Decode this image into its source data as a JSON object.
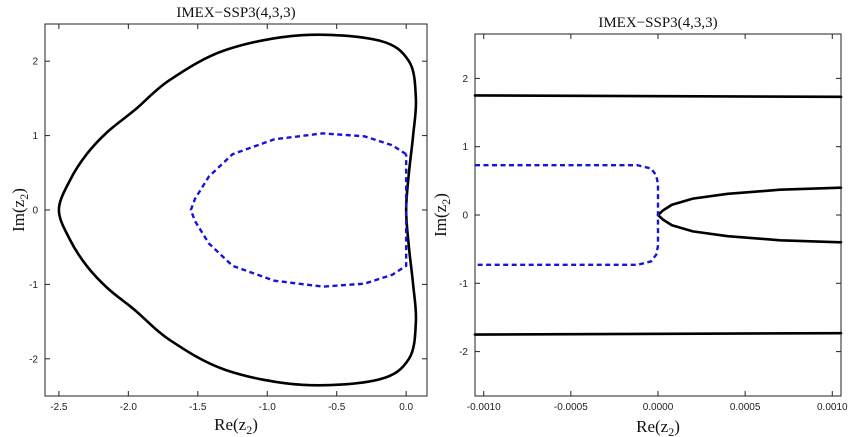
{
  "chart_data": [
    {
      "type": "line",
      "title": "IMEX−SSP3(4,3,3)",
      "xlabel_base": "Re(z",
      "xlabel_sub": "2",
      "xlabel_end": ")",
      "ylabel_base": "Im(z",
      "ylabel_sub": "2",
      "ylabel_end": ")",
      "xlim": [
        -2.6,
        0.15
      ],
      "ylim": [
        -2.5,
        2.5
      ],
      "xticks": [
        -2.5,
        -2.0,
        -1.5,
        -1.0,
        -0.5,
        0.0
      ],
      "xtick_labels": [
        "-2.5",
        "-2.0",
        "-1.5",
        "-1.0",
        "-0.5",
        "0.0"
      ],
      "yticks": [
        -2,
        -1,
        0,
        1,
        2
      ],
      "ytick_labels": [
        "-2",
        "-1",
        "0",
        "1",
        "2"
      ],
      "grid": false,
      "series": [
        {
          "style": "solid",
          "color": "#000000",
          "closed": true,
          "points": [
            [
              -0.75,
              2.35
            ],
            [
              -0.2,
              2.28
            ],
            [
              0.02,
              2.0
            ],
            [
              0.07,
              1.5
            ],
            [
              0.05,
              1.0
            ],
            [
              0.02,
              0.5
            ],
            [
              0.0,
              0.0
            ],
            [
              0.02,
              -0.5
            ],
            [
              0.05,
              -1.0
            ],
            [
              0.07,
              -1.5
            ],
            [
              0.02,
              -2.0
            ],
            [
              -0.2,
              -2.28
            ],
            [
              -0.75,
              -2.35
            ],
            [
              -1.3,
              -2.15
            ],
            [
              -1.7,
              -1.75
            ],
            [
              -1.95,
              -1.35
            ],
            [
              -2.15,
              -1.05
            ],
            [
              -2.3,
              -0.75
            ],
            [
              -2.42,
              -0.4
            ],
            [
              -2.5,
              0.0
            ],
            [
              -2.42,
              0.4
            ],
            [
              -2.3,
              0.75
            ],
            [
              -2.15,
              1.05
            ],
            [
              -1.95,
              1.35
            ],
            [
              -1.7,
              1.75
            ],
            [
              -1.3,
              2.15
            ]
          ]
        },
        {
          "style": "dashed",
          "color": "#1515d9",
          "closed": false,
          "points": [
            [
              0.0,
              0.75
            ],
            [
              -0.1,
              0.87
            ],
            [
              -0.3,
              0.99
            ],
            [
              -0.6,
              1.03
            ],
            [
              -0.95,
              0.95
            ],
            [
              -1.25,
              0.75
            ],
            [
              -1.42,
              0.45
            ],
            [
              -1.52,
              0.15
            ],
            [
              -1.55,
              0.0
            ],
            [
              -1.52,
              -0.15
            ],
            [
              -1.42,
              -0.45
            ],
            [
              -1.25,
              -0.75
            ],
            [
              -0.95,
              -0.95
            ],
            [
              -0.6,
              -1.03
            ],
            [
              -0.3,
              -0.99
            ],
            [
              -0.1,
              -0.87
            ],
            [
              0.0,
              -0.75
            ],
            [
              0.0,
              0.75
            ]
          ]
        }
      ]
    },
    {
      "type": "line",
      "title": "IMEX−SSP3(4,3,3)",
      "xlabel_base": "Re(z",
      "xlabel_sub": "2",
      "xlabel_end": ")",
      "ylabel_base": "Im(z",
      "ylabel_sub": "2",
      "ylabel_end": ")",
      "xlim": [
        -0.00105,
        0.00105
      ],
      "ylim": [
        -2.65,
        2.65
      ],
      "xticks": [
        -0.001,
        -0.0005,
        0.0,
        0.0005,
        0.001
      ],
      "xtick_labels": [
        "-0.0010",
        "-0.0005",
        "0.0000",
        "0.0005",
        "0.0010"
      ],
      "yticks": [
        -2,
        -1,
        0,
        1,
        2
      ],
      "ytick_labels": [
        "-2",
        "-1",
        "0",
        "1",
        "2"
      ],
      "grid": false,
      "series": [
        {
          "style": "solid",
          "color": "#000000",
          "closed": false,
          "points": [
            [
              -0.00105,
              1.75
            ],
            [
              0.00105,
              1.73
            ]
          ]
        },
        {
          "style": "solid",
          "color": "#000000",
          "closed": false,
          "points": [
            [
              -0.00105,
              -1.75
            ],
            [
              0.00105,
              -1.73
            ]
          ]
        },
        {
          "style": "solid",
          "color": "#000000",
          "closed": false,
          "points": [
            [
              0.00105,
              0.4
            ],
            [
              0.0007,
              0.37
            ],
            [
              0.0004,
              0.31
            ],
            [
              0.0002,
              0.24
            ],
            [
              8e-05,
              0.15
            ],
            [
              3e-05,
              0.07
            ],
            [
              0.0,
              0.0
            ],
            [
              3e-05,
              -0.07
            ],
            [
              8e-05,
              -0.15
            ],
            [
              0.0002,
              -0.24
            ],
            [
              0.0004,
              -0.31
            ],
            [
              0.0007,
              -0.37
            ],
            [
              0.00105,
              -0.4
            ]
          ]
        },
        {
          "style": "dashed",
          "color": "#1515d9",
          "closed": false,
          "points": [
            [
              -0.00105,
              0.73
            ],
            [
              -0.00012,
              0.73
            ],
            [
              -4e-05,
              0.68
            ],
            [
              -1e-05,
              0.58
            ],
            [
              0.0,
              0.45
            ],
            [
              0.0,
              -0.45
            ],
            [
              -1e-05,
              -0.58
            ],
            [
              -4e-05,
              -0.68
            ],
            [
              -0.00012,
              -0.73
            ],
            [
              -0.00105,
              -0.73
            ]
          ]
        }
      ]
    }
  ]
}
